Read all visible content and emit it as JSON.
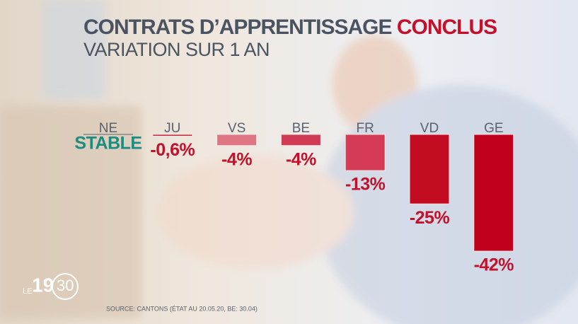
{
  "chart_data": {
    "type": "hanging-bar",
    "title": "CONTRATS D’APPRENTISSAGE",
    "title_highlight": "CONCLUS",
    "subtitle": "VARIATION SUR 1 AN",
    "categories": [
      "NE",
      "JU",
      "VS",
      "BE",
      "FR",
      "VD",
      "GE"
    ],
    "values": [
      0,
      -0.6,
      -4,
      -4,
      -13,
      -25,
      -42
    ],
    "value_labels": [
      "STABLE",
      "-0,6%",
      "-4%",
      "-4%",
      "-13%",
      "-25%",
      "-42%"
    ],
    "colors": [
      "#c2102a",
      "#c2102a",
      "#e07583",
      "#cf3b55",
      "#d53b55",
      "#c30b22",
      "#c1001d"
    ],
    "label_color": "#c3102b",
    "zero_label_color": "#1b8c82",
    "source": "SOURCE: CANTONS (ÉTAT AU 20.05.20, BE: 30.04)"
  },
  "branding": {
    "prefix": "LE",
    "hour": "19",
    "minutes": "30"
  }
}
